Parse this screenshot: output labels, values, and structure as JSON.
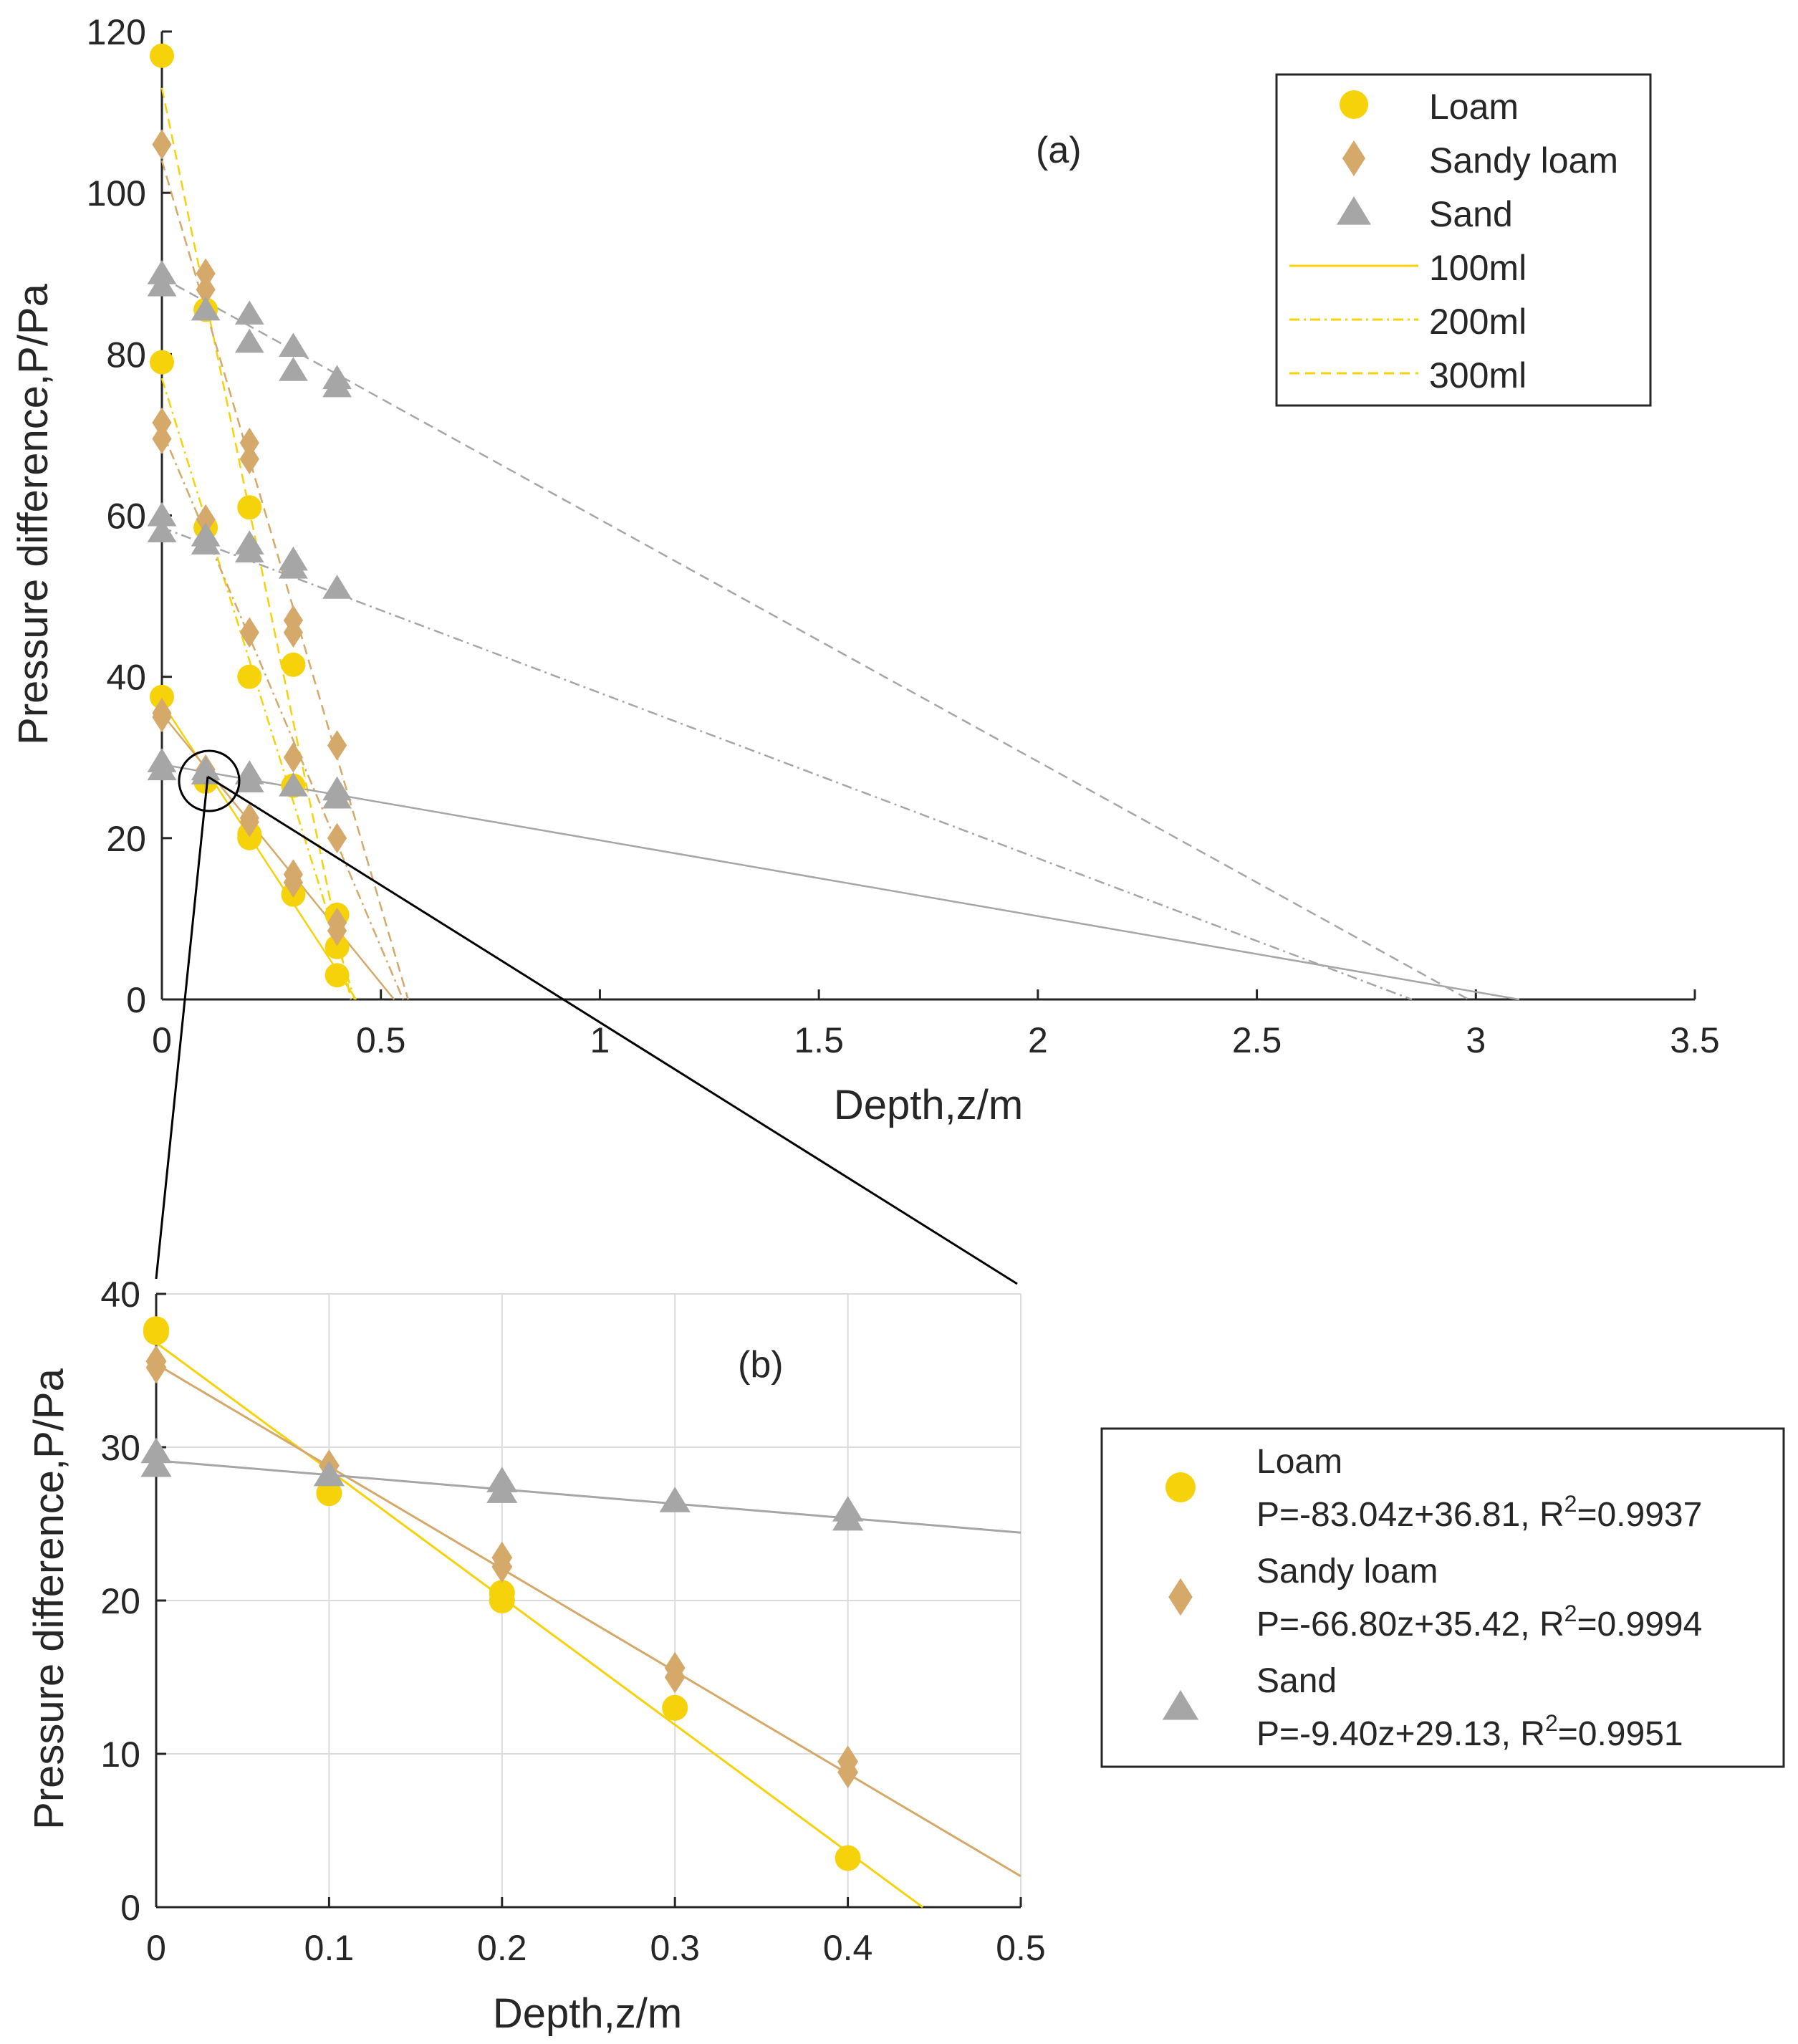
{
  "colors": {
    "loam": "#f5d20a",
    "sandy_loam": "#d4a96a",
    "sand": "#a6a6a6",
    "axis": "#262626"
  },
  "chart_data": [
    {
      "id": "a",
      "type": "scatter",
      "panel_label": "(a)",
      "xlabel": "Depth,z/m",
      "ylabel": "Pressure difference,P/Pa",
      "xlim": [
        0,
        3.5
      ],
      "ylim": [
        0,
        120
      ],
      "xticks": [
        "0",
        "0.5",
        "1",
        "1.5",
        "2",
        "2.5",
        "3",
        "3.5"
      ],
      "yticks": [
        "0",
        "20",
        "40",
        "60",
        "80",
        "100",
        "120"
      ],
      "grid": false,
      "legend_position": "top-right",
      "legend": {
        "markers": [
          {
            "label": "Loam",
            "series": "loam",
            "shape": "circle"
          },
          {
            "label": "Sandy loam",
            "series": "sandy_loam",
            "shape": "diamond"
          },
          {
            "label": "Sand",
            "series": "sand",
            "shape": "triangle"
          }
        ],
        "lines": [
          {
            "label": "100ml",
            "style": "solid"
          },
          {
            "label": "200ml",
            "style": "dashdot"
          },
          {
            "label": "300ml",
            "style": "dashed"
          }
        ]
      },
      "series": [
        {
          "name": "Loam",
          "key": "loam",
          "shape": "circle",
          "volume": "100ml",
          "x": [
            0,
            0.1,
            0.2,
            0.2,
            0.3,
            0.4
          ],
          "y": [
            37.5,
            27,
            20,
            20.5,
            13,
            3
          ],
          "fit": {
            "slope": -83.04,
            "intercept": 36.81,
            "style": "solid"
          }
        },
        {
          "name": "Loam",
          "key": "loam",
          "shape": "circle",
          "volume": "200ml",
          "x": [
            0,
            0.1,
            0.2,
            0.3,
            0.4
          ],
          "y": [
            79,
            58.5,
            40,
            26.5,
            6.5
          ],
          "fit": {
            "slope": -175,
            "intercept": 77,
            "style": "dashdot"
          }
        },
        {
          "name": "Loam",
          "key": "loam",
          "shape": "circle",
          "volume": "300ml",
          "x": [
            0,
            0.1,
            0.2,
            0.3,
            0.4
          ],
          "y": [
            117,
            85.5,
            61,
            41.5,
            10.5
          ],
          "fit": {
            "slope": -262,
            "intercept": 113,
            "style": "dashed"
          }
        },
        {
          "name": "Sandy loam",
          "key": "sandy_loam",
          "shape": "diamond",
          "volume": "100ml",
          "x": [
            0,
            0,
            0.1,
            0.2,
            0.2,
            0.3,
            0.3,
            0.4,
            0.4
          ],
          "y": [
            35.5,
            35,
            28.5,
            22.5,
            22,
            15.5,
            14.5,
            9.5,
            8.5
          ],
          "fit": {
            "slope": -66.8,
            "intercept": 35.42,
            "style": "solid"
          }
        },
        {
          "name": "Sandy loam",
          "key": "sandy_loam",
          "shape": "diamond",
          "volume": "200ml",
          "x": [
            0,
            0,
            0.1,
            0.2,
            0.3,
            0.4
          ],
          "y": [
            71.5,
            69.5,
            59.5,
            45.5,
            30,
            20
          ],
          "fit": {
            "slope": -128,
            "intercept": 70.5,
            "style": "dashdot"
          }
        },
        {
          "name": "Sandy loam",
          "key": "sandy_loam",
          "shape": "diamond",
          "volume": "300ml",
          "x": [
            0,
            0.1,
            0.1,
            0.2,
            0.2,
            0.3,
            0.3,
            0.4
          ],
          "y": [
            106,
            90,
            88,
            69,
            67,
            47,
            45.5,
            31.5
          ],
          "fit": {
            "slope": -185,
            "intercept": 104,
            "style": "dashed"
          }
        },
        {
          "name": "Sand",
          "key": "sand",
          "shape": "triangle",
          "volume": "100ml",
          "x": [
            0,
            0,
            0.1,
            0.1,
            0.2,
            0.2,
            0.3,
            0.4,
            0.4
          ],
          "y": [
            29.5,
            28.5,
            28.5,
            28,
            28,
            27,
            26.5,
            26,
            25
          ],
          "fit": {
            "slope": -9.4,
            "intercept": 29.13,
            "style": "solid"
          }
        },
        {
          "name": "Sand",
          "key": "sand",
          "shape": "triangle",
          "volume": "200ml",
          "x": [
            0,
            0,
            0.1,
            0.1,
            0.2,
            0.2,
            0.3,
            0.3,
            0.4
          ],
          "y": [
            60,
            58,
            57.5,
            56.5,
            56.5,
            55.5,
            54.5,
            53.5,
            51
          ],
          "fit": {
            "slope": -20.5,
            "intercept": 58.5,
            "style": "dashdot"
          }
        },
        {
          "name": "Sand",
          "key": "sand",
          "shape": "triangle",
          "volume": "300ml",
          "x": [
            0,
            0,
            0.1,
            0.2,
            0.2,
            0.3,
            0.3,
            0.4,
            0.4
          ],
          "y": [
            90,
            88.5,
            85.5,
            85,
            81.5,
            81,
            78,
            77,
            76
          ],
          "fit": {
            "slope": -30,
            "intercept": 89.5,
            "style": "dashed"
          }
        }
      ]
    },
    {
      "id": "b",
      "type": "scatter",
      "panel_label": "(b)",
      "xlabel": "Depth,z/m",
      "ylabel": "Pressure difference,P/Pa",
      "xlim": [
        0,
        0.5
      ],
      "ylim": [
        0,
        40
      ],
      "xticks": [
        "0",
        "0.1",
        "0.2",
        "0.3",
        "0.4",
        "0.5"
      ],
      "yticks": [
        "0",
        "10",
        "20",
        "30",
        "40"
      ],
      "grid": true,
      "legend_position": "right",
      "legend": {
        "entries": [
          {
            "label": "Loam",
            "series": "loam",
            "shape": "circle",
            "eq_main": "P=-83.04z+36.81, R",
            "eq_sup": "2",
            "eq_tail": "=0.9937"
          },
          {
            "label": "Sandy loam",
            "series": "sandy_loam",
            "shape": "diamond",
            "eq_main": "P=-66.80z+35.42, R",
            "eq_sup": "2",
            "eq_tail": "=0.9994"
          },
          {
            "label": "Sand",
            "series": "sand",
            "shape": "triangle",
            "eq_main": "P=-9.40z+29.13, R",
            "eq_sup": "2",
            "eq_tail": "=0.9951"
          }
        ]
      },
      "series": [
        {
          "name": "Loam",
          "key": "loam",
          "shape": "circle",
          "x": [
            0,
            0,
            0.1,
            0.2,
            0.2,
            0.3,
            0.4
          ],
          "y": [
            37.5,
            37.7,
            27,
            20.5,
            20,
            13,
            3.2
          ],
          "fit": {
            "slope": -83.04,
            "intercept": 36.81,
            "style": "solid"
          }
        },
        {
          "name": "Sandy loam",
          "key": "sandy_loam",
          "shape": "diamond",
          "x": [
            0,
            0,
            0.1,
            0.2,
            0.2,
            0.3,
            0.3,
            0.4,
            0.4
          ],
          "y": [
            35.6,
            35.2,
            28.8,
            22.8,
            22.2,
            15.6,
            15,
            9.5,
            8.8
          ],
          "fit": {
            "slope": -66.8,
            "intercept": 35.42,
            "style": "solid"
          }
        },
        {
          "name": "Sand",
          "key": "sand",
          "shape": "triangle",
          "x": [
            0,
            0,
            0.1,
            0.2,
            0.2,
            0.3,
            0.4,
            0.4
          ],
          "y": [
            29.7,
            28.8,
            28.2,
            27.8,
            27.1,
            26.5,
            25.9,
            25.3
          ],
          "fit": {
            "slope": -9.4,
            "intercept": 29.13,
            "style": "solid"
          }
        }
      ]
    }
  ]
}
